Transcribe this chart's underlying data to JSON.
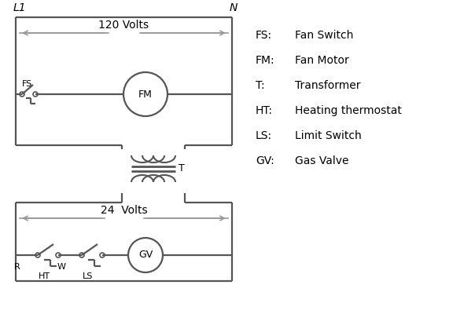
{
  "background_color": "#ffffff",
  "line_color": "#555555",
  "arrow_color": "#999999",
  "text_color": "#000000",
  "lw": 1.6,
  "legend_items": [
    [
      "FS:",
      "Fan Switch"
    ],
    [
      "FM:",
      "Fan Motor"
    ],
    [
      "T:",
      "Transformer"
    ],
    [
      "HT:",
      "Heating thermostat"
    ],
    [
      "LS:",
      "Limit Switch"
    ],
    [
      "GV:",
      "Gas Valve"
    ]
  ],
  "fig_w": 5.9,
  "fig_h": 4.0,
  "dpi": 100
}
